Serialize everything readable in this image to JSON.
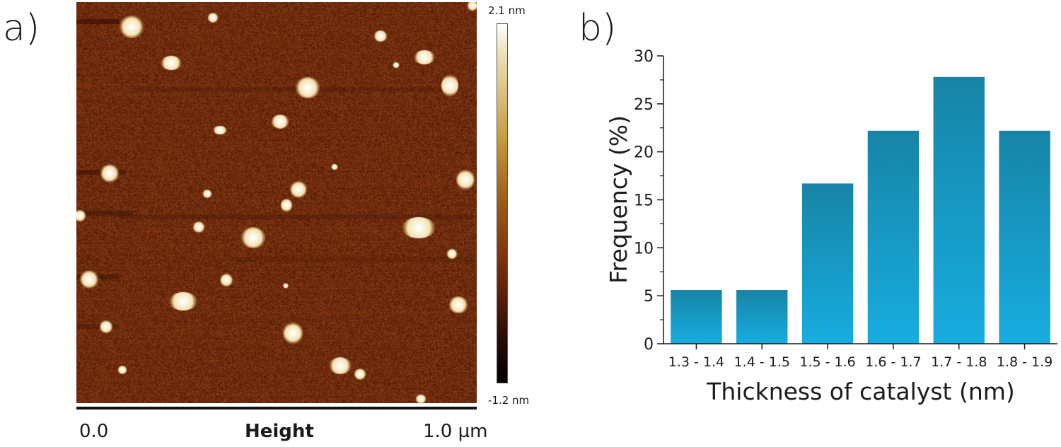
{
  "panel_a": {
    "label": "a)",
    "colorbar": {
      "max_label": "2.1 nm",
      "min_label": "-1.2 nm"
    },
    "scale": {
      "start_label": "0.0",
      "end_label": "1.0 µm",
      "channel_label": "Height"
    },
    "colors": {
      "background": "#6b2a0c",
      "dark_band": "#3a1305",
      "particle": "#f4e2b2",
      "particle_core": "#ffffff"
    }
  },
  "panel_b": {
    "label": "b)"
  },
  "chart_data": {
    "type": "bar",
    "categories": [
      "1.3 - 1.4",
      "1.4 - 1.5",
      "1.5 - 1.6",
      "1.6 - 1.7",
      "1.7 - 1.8",
      "1.8 - 1.9"
    ],
    "values": [
      5.6,
      5.6,
      16.7,
      22.2,
      27.8,
      22.2
    ],
    "xlabel": "Thickness of catalyst (nm)",
    "ylabel": "Frequency (%)",
    "ylim": [
      0,
      30
    ],
    "yticks": [
      "0",
      "5",
      "10",
      "15",
      "20",
      "25",
      "30"
    ],
    "grid": false,
    "bar_color_top": "#1784a6",
    "bar_color_bottom": "#17ade0"
  }
}
